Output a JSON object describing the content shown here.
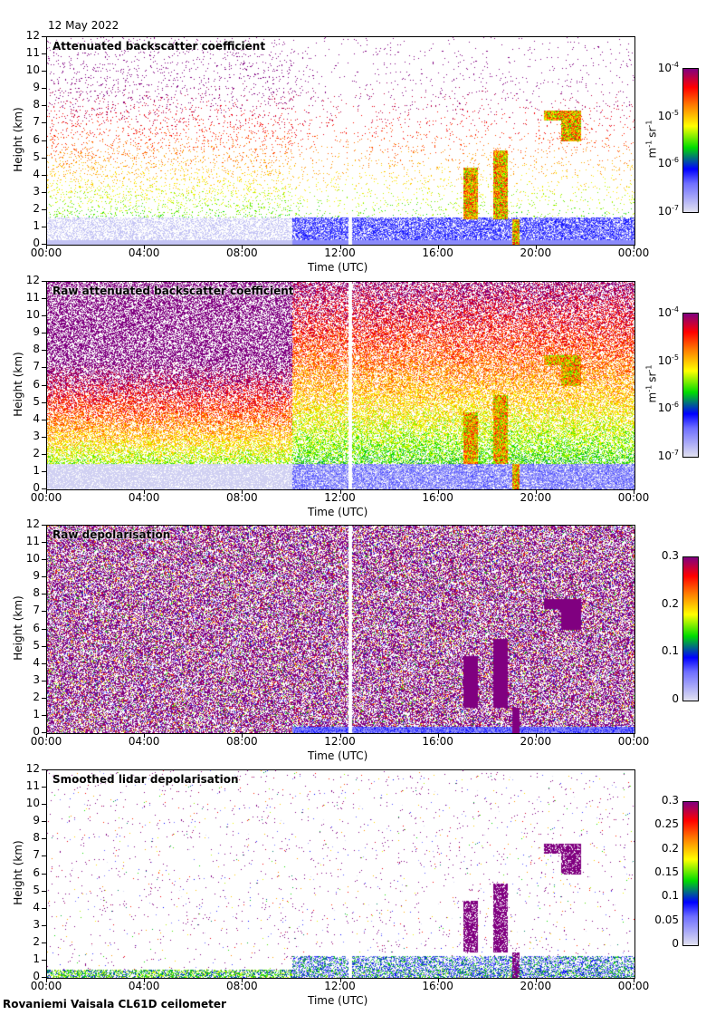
{
  "date": "12 May 2022",
  "footer": "Rovaniemi Vaisala CL61D ceilometer",
  "chart_data": [
    {
      "type": "heatmap",
      "title": "Attenuated backscatter coefficient",
      "xlabel": "Time (UTC)",
      "ylabel": "Height (km)",
      "xticks": [
        "00:00",
        "04:00",
        "08:00",
        "12:00",
        "16:00",
        "20:00",
        "00:00"
      ],
      "yticks": [
        "0",
        "1",
        "2",
        "3",
        "4",
        "5",
        "6",
        "7",
        "8",
        "9",
        "10",
        "11",
        "12"
      ],
      "ylim": [
        0,
        12
      ],
      "colorbar": {
        "scale": "log",
        "range": [
          1e-07,
          0.0001
        ],
        "ticks": [
          "10",
          "10",
          "10",
          "10"
        ],
        "exps": [
          "-7",
          "-6",
          "-5",
          "-4"
        ],
        "unit_m": "m",
        "unit_m_exp": "-1",
        "unit_sr": "sr",
        "unit_sr_exp": "-1"
      }
    },
    {
      "type": "heatmap",
      "title": "Raw attenuated backscatter coefficient",
      "xlabel": "Time (UTC)",
      "ylabel": "Height (km)",
      "xticks": [
        "00:00",
        "04:00",
        "08:00",
        "12:00",
        "16:00",
        "20:00",
        "00:00"
      ],
      "yticks": [
        "0",
        "1",
        "2",
        "3",
        "4",
        "5",
        "6",
        "7",
        "8",
        "9",
        "10",
        "11",
        "12"
      ],
      "ylim": [
        0,
        12
      ],
      "colorbar": {
        "scale": "log",
        "range": [
          1e-07,
          0.0001
        ],
        "ticks": [
          "10",
          "10",
          "10",
          "10"
        ],
        "exps": [
          "-7",
          "-6",
          "-5",
          "-4"
        ],
        "unit_m": "m",
        "unit_m_exp": "-1",
        "unit_sr": "sr",
        "unit_sr_exp": "-1"
      }
    },
    {
      "type": "heatmap",
      "title": "Raw depolarisation",
      "xlabel": "Time (UTC)",
      "ylabel": "Height (km)",
      "xticks": [
        "00:00",
        "04:00",
        "08:00",
        "12:00",
        "16:00",
        "20:00",
        "00:00"
      ],
      "yticks": [
        "0",
        "1",
        "2",
        "3",
        "4",
        "5",
        "6",
        "7",
        "8",
        "9",
        "10",
        "11",
        "12"
      ],
      "ylim": [
        0,
        12
      ],
      "colorbar": {
        "scale": "linear",
        "range": [
          0,
          0.3
        ],
        "ticks": [
          "0",
          "0.1",
          "0.2",
          "0.3"
        ]
      }
    },
    {
      "type": "heatmap",
      "title": "Smoothed lidar depolarisation",
      "xlabel": "Time (UTC)",
      "ylabel": "Height (km)",
      "xticks": [
        "00:00",
        "04:00",
        "08:00",
        "12:00",
        "16:00",
        "20:00",
        "00:00"
      ],
      "yticks": [
        "0",
        "1",
        "2",
        "3",
        "4",
        "5",
        "6",
        "7",
        "8",
        "9",
        "10",
        "11",
        "12"
      ],
      "ylim": [
        0,
        12
      ],
      "colorbar": {
        "scale": "linear",
        "range": [
          0,
          0.3
        ],
        "ticks": [
          "0",
          "0.05",
          "0.1",
          "0.15",
          "0.2",
          "0.25",
          "0.3"
        ]
      }
    }
  ]
}
